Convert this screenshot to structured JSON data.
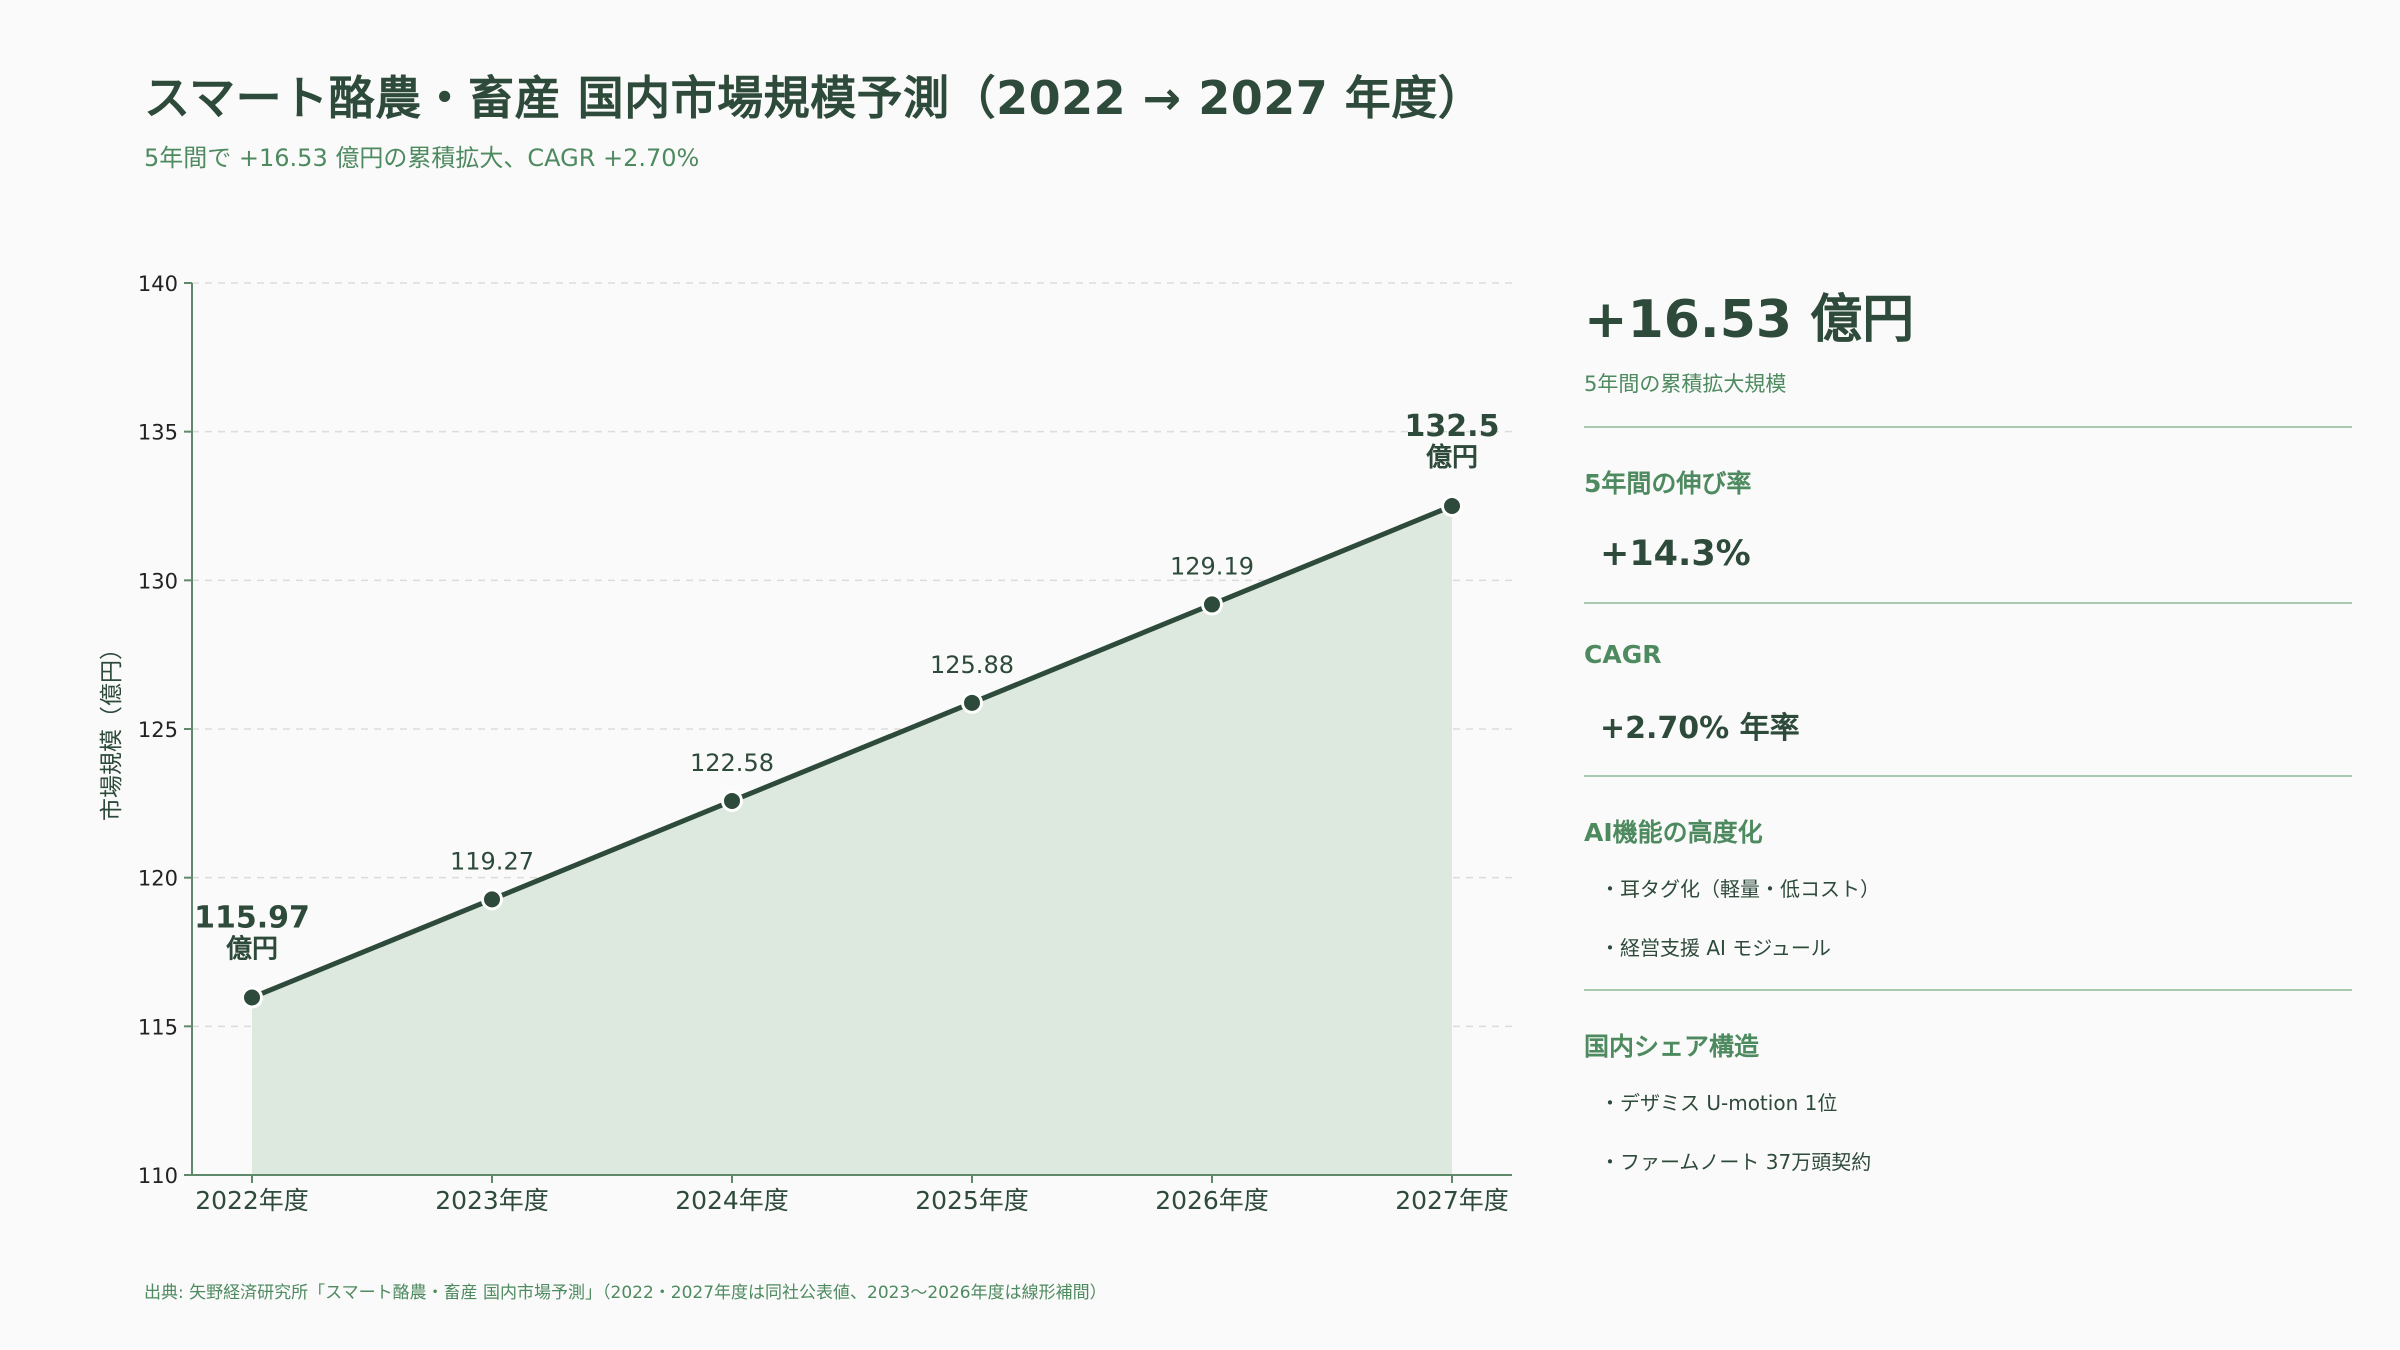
{
  "header": {
    "title": "スマート酪農・畜産 国内市場規模予測（2022 → 2027 年度）",
    "subtitle": "5年間で +16.53 億円の累積拡大、CAGR +2.70%"
  },
  "chart_data": {
    "type": "area",
    "categories": [
      "2022年度",
      "2023年度",
      "2024年度",
      "2025年度",
      "2026年度",
      "2027年度"
    ],
    "values": [
      115.97,
      119.27,
      122.58,
      125.88,
      129.19,
      132.5
    ],
    "data_labels": [
      "115.97",
      "119.27",
      "122.58",
      "125.88",
      "129.19",
      "132.5"
    ],
    "endpoint_unit": "億円",
    "ylabel": "市場規模（億円）",
    "xlabel": "",
    "ylim": [
      110,
      140
    ],
    "yticks": [
      110,
      115,
      120,
      125,
      130,
      135,
      140
    ],
    "grid": true,
    "colors": {
      "line": "#2d4a3a",
      "fill": "#dde9df",
      "marker": "#2d4a3a",
      "marker_stroke": "#ffffff",
      "grid": "#dcdcdc",
      "axis": "#5e8a6b"
    }
  },
  "sidebar": {
    "total": {
      "value": "+16.53 億円",
      "label": "5年間の累積拡大規模"
    },
    "growth": {
      "title": "5年間の伸び率",
      "value": "+14.3%"
    },
    "cagr": {
      "title": "CAGR",
      "value": "+2.70% 年率"
    },
    "ai": {
      "title": "AI機能の高度化",
      "items": [
        "・耳タグ化（軽量・低コスト）",
        "・経営支援 AI モジュール"
      ]
    },
    "share": {
      "title": "国内シェア構造",
      "items": [
        "・デザミス U-motion 1位",
        "・ファームノート 37万頭契約"
      ]
    }
  },
  "source": "出典: 矢野経済研究所「スマート酪農・畜産 国内市場予測」（2022・2027年度は同社公表値、2023〜2026年度は線形補間）"
}
